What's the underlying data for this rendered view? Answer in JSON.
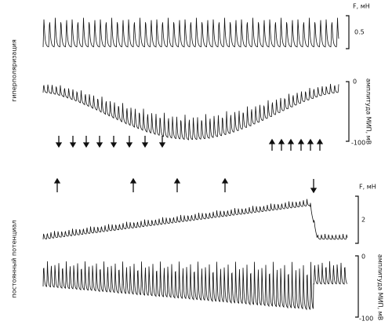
{
  "panels": [
    {
      "side_label": "гиперполяризация",
      "force": {
        "unit_label": "F, мН",
        "scale_label": "0.5"
      },
      "potential": {
        "axis_label": "амплитуда МИП, мВ",
        "top_label": "0",
        "bottom_label": "-100"
      }
    },
    {
      "side_label": "постоянный потенциал",
      "force": {
        "unit_label": "F, мН",
        "scale_label": "2"
      },
      "potential": {
        "axis_label": "амплитуда МИП, мВ",
        "top_label": "0",
        "bottom_label": "-100"
      }
    }
  ]
}
